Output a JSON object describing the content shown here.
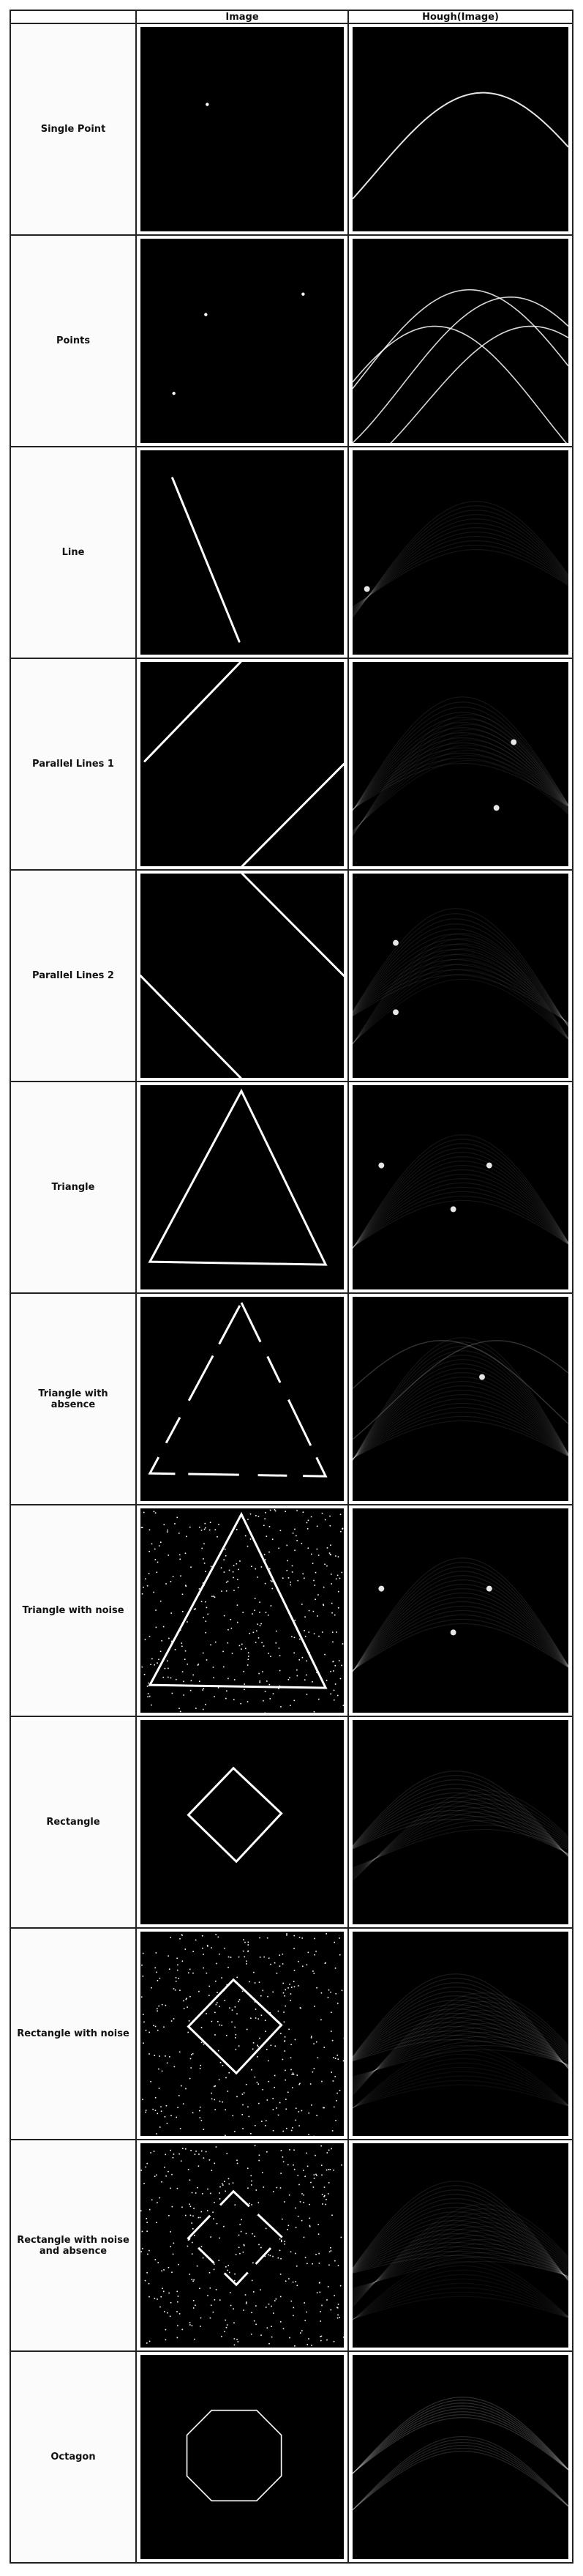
{
  "table": {
    "header": {
      "label_col": "",
      "image_col": "Image",
      "hough_col": "Hough(Image)"
    },
    "rows": [
      {
        "label": "Single Point"
      },
      {
        "label": "Points"
      },
      {
        "label": "Line"
      },
      {
        "label": "Parallel Lines 1"
      },
      {
        "label": "Parallel Lines 2"
      },
      {
        "label": "Triangle"
      },
      {
        "label": "Triangle with absence"
      },
      {
        "label": "Triangle with noise"
      },
      {
        "label": "Rectangle"
      },
      {
        "label": "Rectangle with noise"
      },
      {
        "label": "Rectangle with noise and absence"
      },
      {
        "label": "Octagon"
      }
    ]
  },
  "colors": {
    "cell_background": "#000000",
    "stroke": "#ffffff",
    "grid": "#222222"
  }
}
